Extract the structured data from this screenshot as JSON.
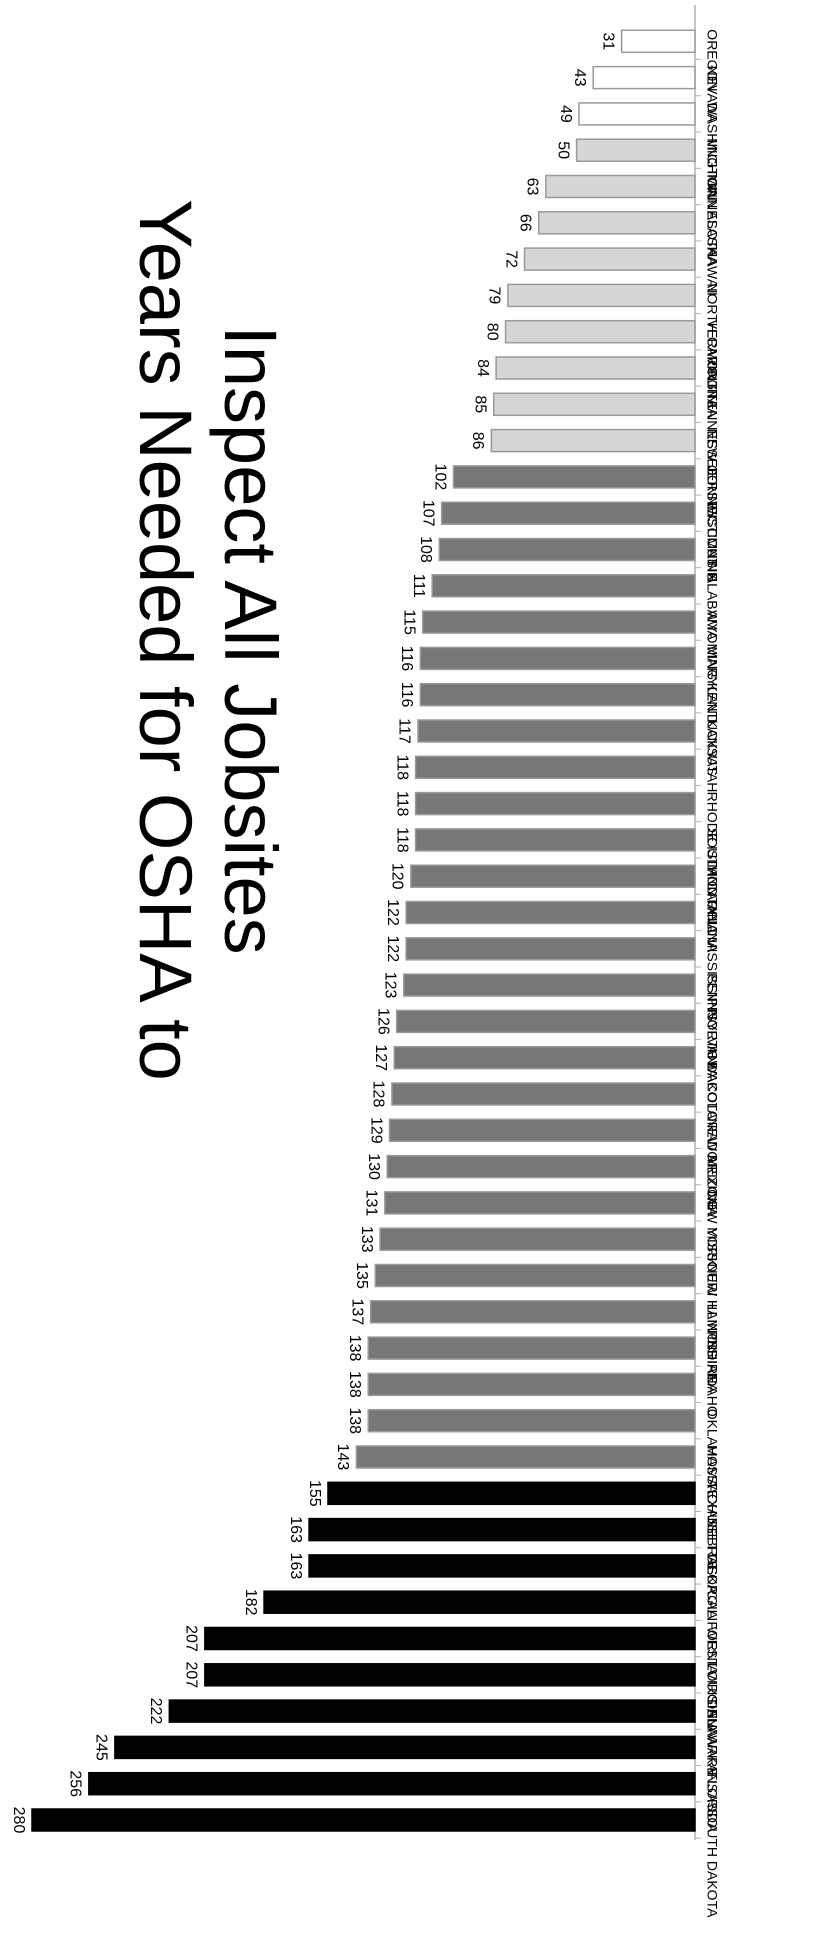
{
  "chart_data": {
    "type": "bar",
    "orientation": "horizontal",
    "title": "Years Needed for OSHA to Inspect All Jobsites",
    "title_lines": [
      "Years Needed for OSHA to",
      "Inspect All Jobsites"
    ],
    "xlabel": "",
    "ylabel": "",
    "xlim": [
      0,
      280
    ],
    "grid": false,
    "legend": "none",
    "categories": [
      "SOUTH DAKOTA",
      "FLORIDA",
      "ARKANSAS",
      "DELAWARE",
      "LOUISIANA",
      "WEST VIRGINIA",
      "CALIFORNIA",
      "GEORGIA",
      "NEBRASKA",
      "TEXAS",
      "MASSACHUSETTS",
      "OKLAHOMA",
      "IDAHO",
      "INDIANA",
      "ILLINOIS",
      "NEW HAMPSHIRE",
      "MISSOURI",
      "NEW YORK",
      "ARIZONA",
      "NEW MEXICO",
      "COLORADO",
      "IOWA",
      "NORTH DAKOTA",
      "PENNSYLVANIA",
      "MISSISSIPPI",
      "OHIO",
      "MONTANA",
      "SOUTH CAROLINA",
      "RHODE ISLAND",
      "UTAH",
      "KANSAS",
      "KENTUCKY",
      "MARYLAND",
      "WYOMING",
      "ALABAMA",
      "MAINE",
      "WISCONSIN",
      "CONNECTICUT",
      "NEW JERSEY",
      "TENNESSEE",
      "VIRGINIA",
      "VERMONT",
      "NORTH CAROLINA",
      "HAWAII",
      "ALASKA",
      "MINNESOTA",
      "MICHIGAN",
      "WASHINGTON",
      "NEVADA",
      "OREGON"
    ],
    "values": [
      280,
      256,
      245,
      222,
      207,
      207,
      182,
      163,
      163,
      155,
      143,
      138,
      138,
      138,
      137,
      135,
      133,
      131,
      130,
      129,
      128,
      127,
      126,
      123,
      122,
      122,
      120,
      118,
      118,
      118,
      117,
      116,
      116,
      115,
      111,
      108,
      107,
      102,
      86,
      85,
      84,
      80,
      79,
      72,
      66,
      63,
      50,
      49,
      43,
      31
    ],
    "data_labels": [
      "280",
      "256",
      "245",
      "222",
      "207",
      "207",
      "182",
      "163",
      "163",
      "155",
      "143",
      "138",
      "138",
      "138",
      "137",
      "135",
      "133",
      "131",
      "130",
      "129",
      "128",
      "127",
      "126",
      "123",
      "122",
      "122",
      "120",
      "118",
      "118",
      "118",
      "117",
      "116",
      "116",
      "115",
      "111",
      "108",
      "107",
      "102",
      "86",
      "85",
      "84",
      "80",
      "79",
      "72",
      "66",
      "63",
      "50",
      "49",
      "43",
      "31"
    ],
    "tier_colors": [
      "#000000",
      "#777777",
      "#d6d6d6",
      "#ffffff"
    ],
    "tiers": [
      0,
      0,
      0,
      0,
      0,
      0,
      0,
      0,
      0,
      0,
      1,
      1,
      1,
      1,
      1,
      1,
      1,
      1,
      1,
      1,
      1,
      1,
      1,
      1,
      1,
      1,
      1,
      1,
      1,
      1,
      1,
      1,
      1,
      1,
      1,
      1,
      1,
      1,
      2,
      2,
      2,
      2,
      2,
      2,
      2,
      2,
      2,
      3,
      3,
      3
    ]
  }
}
